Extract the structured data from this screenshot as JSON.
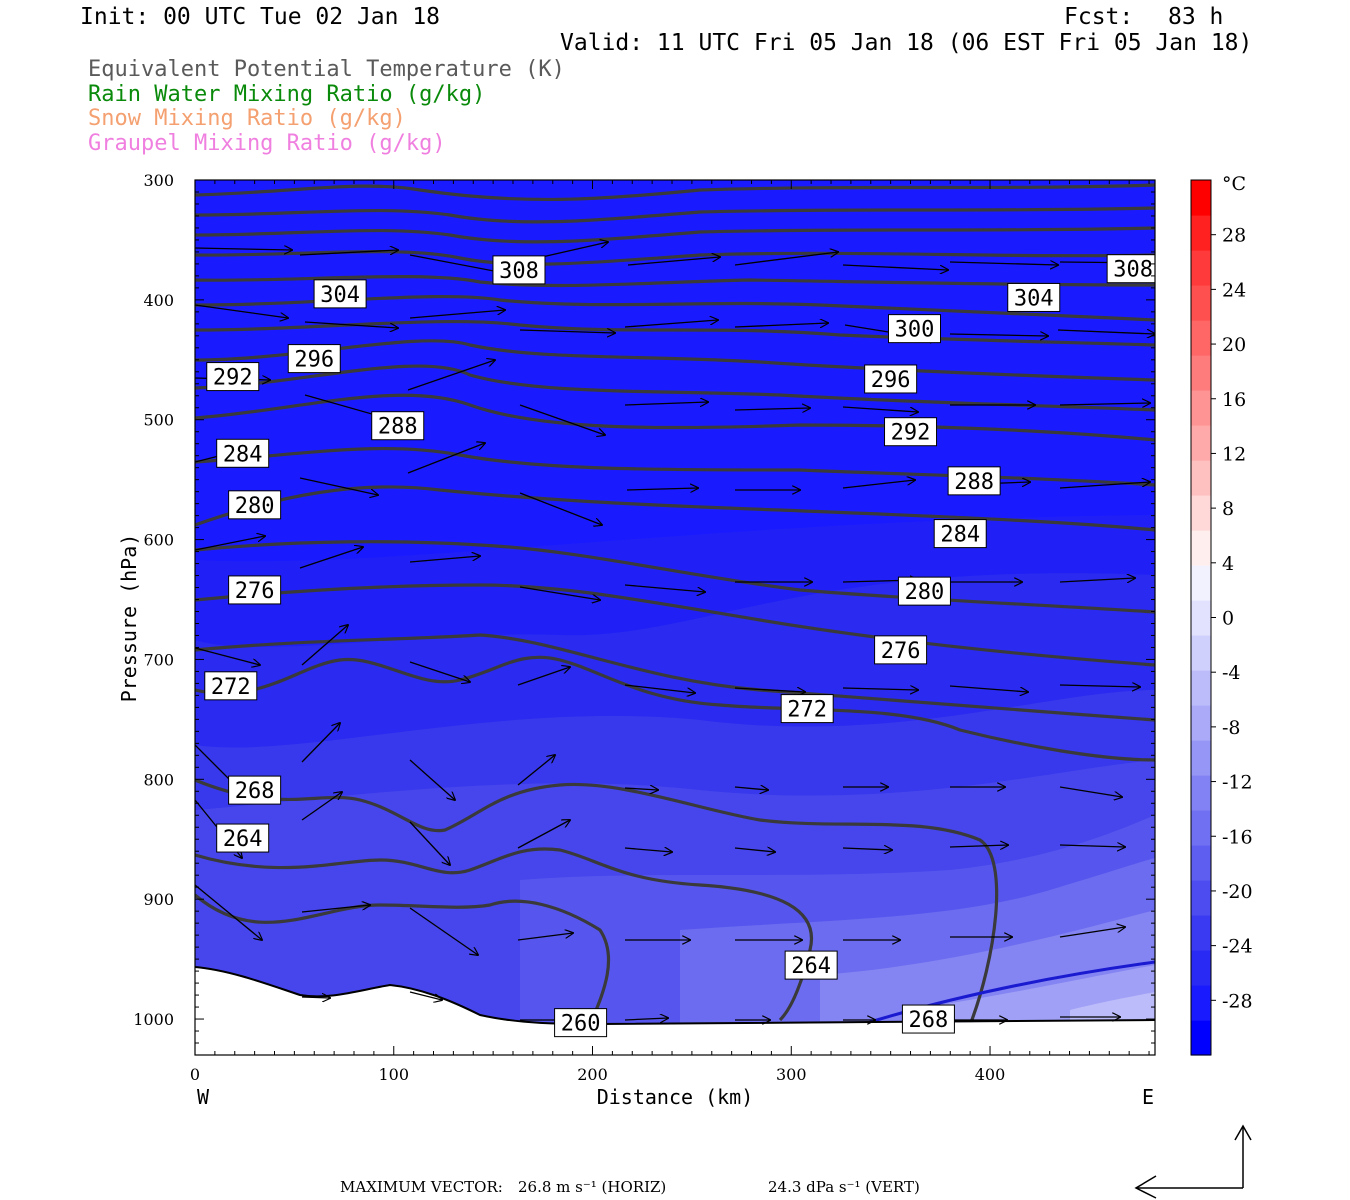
{
  "header": {
    "init": "Init: 00 UTC Tue 02 Jan 18",
    "fcst_label": "Fcst:",
    "fcst_value": "83 h",
    "valid": "Valid: 11 UTC Fri 05 Jan 18 (06 EST Fri 05 Jan 18)"
  },
  "legend": [
    {
      "text": "Equivalent Potential Temperature (K)",
      "color": "#5a5a5a"
    },
    {
      "text": "Rain Water Mixing Ratio (g/kg)",
      "color": "#0a8a0a"
    },
    {
      "text": "Snow Mixing Ratio (g/kg)",
      "color": "#f4a070"
    },
    {
      "text": "Graupel Mixing Ratio (g/kg)",
      "color": "#f080e0"
    }
  ],
  "chart_data": {
    "type": "cross-section",
    "xlabel": "Distance (km)",
    "ylabel": "Pressure (hPa)",
    "xlim": [
      0,
      483
    ],
    "ylim": [
      1030,
      300
    ],
    "x_ticks": [
      0,
      100,
      200,
      300,
      400
    ],
    "y_ticks": [
      300,
      400,
      500,
      600,
      700,
      800,
      900,
      1000
    ],
    "x_end_labels": {
      "left": "W",
      "right": "E"
    },
    "colorbar": {
      "unit": "°C",
      "labels": [
        28,
        24,
        20,
        16,
        12,
        8,
        4,
        0,
        -4,
        -8,
        -12,
        -16,
        -20,
        -24,
        -28
      ],
      "range": [
        -32,
        32
      ]
    },
    "theta_e_labels": [
      {
        "text": "308",
        "x": 163,
        "p": 375
      },
      {
        "text": "308",
        "x": 472,
        "p": 374
      },
      {
        "text": "304",
        "x": 73,
        "p": 395
      },
      {
        "text": "304",
        "x": 422,
        "p": 398
      },
      {
        "text": "300",
        "x": 362,
        "p": 424
      },
      {
        "text": "296",
        "x": 60,
        "p": 449
      },
      {
        "text": "296",
        "x": 350,
        "p": 466
      },
      {
        "text": "292",
        "x": 19,
        "p": 464
      },
      {
        "text": "292",
        "x": 360,
        "p": 510
      },
      {
        "text": "288",
        "x": 102,
        "p": 505
      },
      {
        "text": "288",
        "x": 392,
        "p": 551
      },
      {
        "text": "284",
        "x": 24,
        "p": 528
      },
      {
        "text": "284",
        "x": 385,
        "p": 595
      },
      {
        "text": "280",
        "x": 30,
        "p": 571
      },
      {
        "text": "280",
        "x": 367,
        "p": 643
      },
      {
        "text": "276",
        "x": 30,
        "p": 642
      },
      {
        "text": "276",
        "x": 355,
        "p": 692
      },
      {
        "text": "272",
        "x": 18,
        "p": 722
      },
      {
        "text": "272",
        "x": 308,
        "p": 741
      },
      {
        "text": "268",
        "x": 30,
        "p": 809
      },
      {
        "text": "268",
        "x": 369,
        "p": 1000
      },
      {
        "text": "264",
        "x": 24,
        "p": 849
      },
      {
        "text": "264",
        "x": 310,
        "p": 955
      },
      {
        "text": "260",
        "x": 194,
        "p": 1003
      }
    ]
  },
  "footer": {
    "max_vector": "MAXIMUM VECTOR:",
    "horiz": "26.8 m s⁻¹ (HORIZ)",
    "vert": "24.3 dPa s⁻¹ (VERT)"
  },
  "colors": {
    "plot_bg": "#1a1aff",
    "contour": "#3a3a3a",
    "terrain": "#ffffff"
  }
}
